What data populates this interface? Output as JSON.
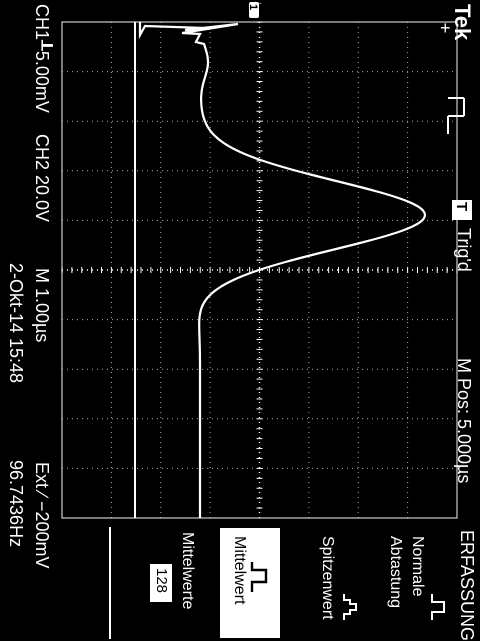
{
  "header": {
    "brand": "Tek",
    "trigger_status": "Trig'd",
    "trigger_badge": "T",
    "position": "M Pos: 5.000µs"
  },
  "status_bar": {
    "ch1": "CH1┸5.00mV",
    "ch2": "CH2  20.0V",
    "timebase": "M 1.00µs",
    "datetime": "2-Okt-14 15:48",
    "trigger": "Ext ∕ −200mV",
    "frequency": "96.7436Hz"
  },
  "markers": {
    "ch1_ground": "1",
    "trigger_point": "↓"
  },
  "menu": {
    "title": "ERFASSUNG",
    "items": [
      {
        "label_lines": [
          "Normale",
          "Abtastung"
        ],
        "icon": "sample-waveform-icon",
        "selected": false
      },
      {
        "label_lines": [
          "Spitzenwert"
        ],
        "icon": "peak-detect-icon",
        "selected": false
      },
      {
        "label_lines": [
          "Mittelwert"
        ],
        "icon": "average-pulse-icon",
        "selected": true
      },
      {
        "label_lines": [
          "Mittelwerte"
        ],
        "value": "128",
        "selected": false
      }
    ]
  },
  "colors": {
    "background": "#000000",
    "trace": "#ffffff",
    "grid": "#c8c8c8"
  }
}
